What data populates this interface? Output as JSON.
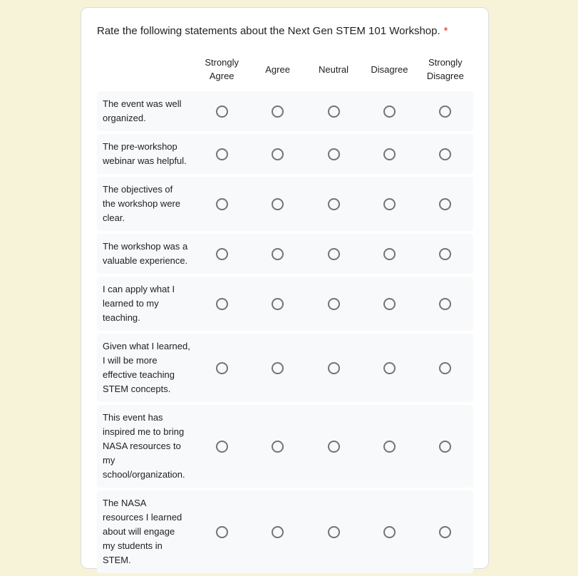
{
  "theme": {
    "page_background": "#f6f3d8",
    "card_background": "#ffffff",
    "card_border": "#dadce0",
    "row_background": "#f8f9fa",
    "text_color": "#202124",
    "required_color": "#d93025",
    "radio_border": "#70757a"
  },
  "question": {
    "title": "Rate the following statements about the Next Gen STEM 101 Workshop.",
    "required_marker": "*"
  },
  "grid": {
    "column_headers": [
      "Strongly Agree",
      "Agree",
      "Neutral",
      "Disagree",
      "Strongly Disagree"
    ],
    "rows": [
      {
        "label": "The event was well\norganized."
      },
      {
        "label": "The pre-workshop\nwebinar was helpful."
      },
      {
        "label": "The objectives of\nthe workshop were\nclear."
      },
      {
        "label": "The workshop was a\nvaluable experience."
      },
      {
        "label": "I can apply what I\nlearned to my\nteaching."
      },
      {
        "label": "Given what I learned,\nI will be more\neffective teaching\nSTEM concepts."
      },
      {
        "label": "This event has\ninspired me to bring\nNASA resources to\nmy\nschool/organization."
      },
      {
        "label": "The NASA\nresources I learned\nabout will engage\nmy students in\nSTEM."
      }
    ]
  }
}
